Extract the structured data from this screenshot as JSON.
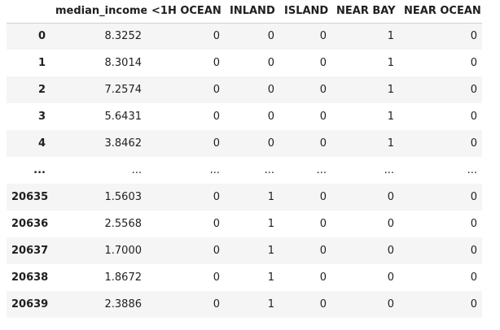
{
  "table": {
    "index_header": "",
    "columns": [
      "median_income",
      "<1H OCEAN",
      "INLAND",
      "ISLAND",
      "NEAR BAY",
      "NEAR OCEAN"
    ],
    "rows": [
      {
        "index": "0",
        "cells": [
          "8.3252",
          "0",
          "0",
          "0",
          "1",
          "0"
        ]
      },
      {
        "index": "1",
        "cells": [
          "8.3014",
          "0",
          "0",
          "0",
          "1",
          "0"
        ]
      },
      {
        "index": "2",
        "cells": [
          "7.2574",
          "0",
          "0",
          "0",
          "1",
          "0"
        ]
      },
      {
        "index": "3",
        "cells": [
          "5.6431",
          "0",
          "0",
          "0",
          "1",
          "0"
        ]
      },
      {
        "index": "4",
        "cells": [
          "3.8462",
          "0",
          "0",
          "0",
          "1",
          "0"
        ]
      },
      {
        "index": "...",
        "cells": [
          "...",
          "...",
          "...",
          "...",
          "...",
          "..."
        ]
      },
      {
        "index": "20635",
        "cells": [
          "1.5603",
          "0",
          "1",
          "0",
          "0",
          "0"
        ]
      },
      {
        "index": "20636",
        "cells": [
          "2.5568",
          "0",
          "1",
          "0",
          "0",
          "0"
        ]
      },
      {
        "index": "20637",
        "cells": [
          "1.7000",
          "0",
          "1",
          "0",
          "0",
          "0"
        ]
      },
      {
        "index": "20638",
        "cells": [
          "1.8672",
          "0",
          "1",
          "0",
          "0",
          "0"
        ]
      },
      {
        "index": "20639",
        "cells": [
          "2.3886",
          "0",
          "1",
          "0",
          "0",
          "0"
        ]
      }
    ]
  }
}
